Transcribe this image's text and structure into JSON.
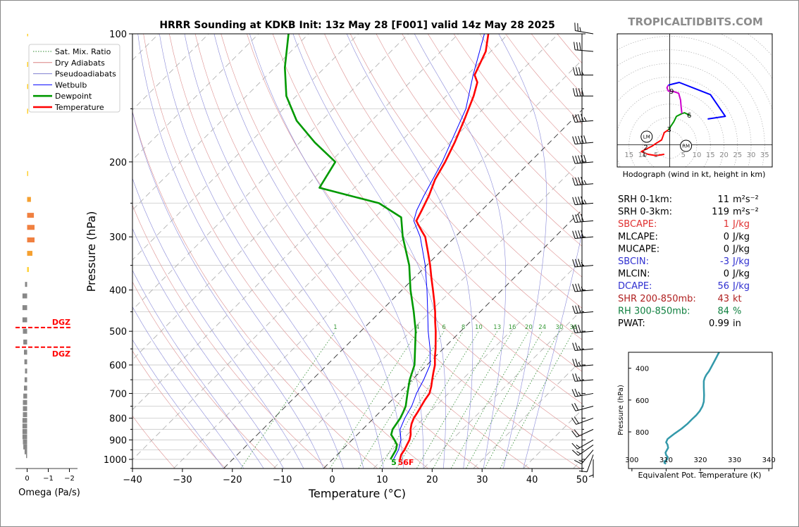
{
  "title": "HRRR Sounding at KDKB Init: 13z May 28 [F001] valid 14z May 28 2025",
  "watermark": "TROPICALTIDBITS.COM",
  "chart_data": [
    {
      "type": "line",
      "name": "skew-t",
      "xlabel": "Temperature (°C)",
      "ylabel": "Pressure (hPa)",
      "x_ticks": [
        -40,
        -30,
        -20,
        -10,
        0,
        10,
        20,
        30,
        40,
        50
      ],
      "y_ticks": [
        100,
        200,
        300,
        400,
        500,
        600,
        700,
        800,
        900,
        1000
      ],
      "xlim": [
        -40,
        50
      ],
      "ylim": [
        1050,
        100
      ],
      "y_scale": "log",
      "skew": "isotherms slanted 45 degrees",
      "legend": {
        "position": "top-left",
        "entries": [
          {
            "label": "Sat. Mix. Ratio",
            "color": "#2e8b2e",
            "style": "dotted"
          },
          {
            "label": "Dry Adiabats",
            "color": "#d98080",
            "style": "solid"
          },
          {
            "label": "Pseudoadiabats",
            "color": "#8080d0",
            "style": "solid"
          },
          {
            "label": "Wetbulb",
            "color": "#0000ff",
            "style": "solid"
          },
          {
            "label": "Dewpoint",
            "color": "#009900",
            "style": "solid"
          },
          {
            "label": "Temperature",
            "color": "#ff0000",
            "style": "solid"
          }
        ]
      },
      "series": [
        {
          "name": "Temperature",
          "color": "#ff0000",
          "points": [
            [
              1000,
              13.5
            ],
            [
              975,
              12.8
            ],
            [
              950,
              12.5
            ],
            [
              925,
              12.0
            ],
            [
              900,
              11.5
            ],
            [
              875,
              10.7
            ],
            [
              850,
              9.6
            ],
            [
              825,
              8.7
            ],
            [
              800,
              8.0
            ],
            [
              775,
              7.6
            ],
            [
              750,
              7.1
            ],
            [
              725,
              6.6
            ],
            [
              700,
              6.2
            ],
            [
              675,
              5.2
            ],
            [
              650,
              4.0
            ],
            [
              625,
              2.8
            ],
            [
              600,
              1.6
            ],
            [
              575,
              0.0
            ],
            [
              550,
              -1.5
            ],
            [
              525,
              -3.2
            ],
            [
              500,
              -5.0
            ],
            [
              475,
              -7.0
            ],
            [
              450,
              -9.0
            ],
            [
              425,
              -11.3
            ],
            [
              400,
              -13.8
            ],
            [
              375,
              -16.5
            ],
            [
              350,
              -19.3
            ],
            [
              325,
              -22.5
            ],
            [
              300,
              -26.0
            ],
            [
              290,
              -28.0
            ],
            [
              280,
              -30.0
            ],
            [
              275,
              -31.0
            ],
            [
              260,
              -32.0
            ],
            [
              240,
              -33.5
            ],
            [
              220,
              -35.5
            ],
            [
              200,
              -37.0
            ],
            [
              180,
              -39.0
            ],
            [
              160,
              -41.5
            ],
            [
              140,
              -44.5
            ],
            [
              130,
              -46.5
            ],
            [
              125,
              -48.5
            ],
            [
              110,
              -51.0
            ],
            [
              100,
              -54.0
            ]
          ]
        },
        {
          "name": "Dewpoint",
          "color": "#009900",
          "points": [
            [
              1000,
              11.6
            ],
            [
              975,
              11.2
            ],
            [
              950,
              10.8
            ],
            [
              925,
              10.0
            ],
            [
              900,
              8.5
            ],
            [
              875,
              6.8
            ],
            [
              850,
              6.0
            ],
            [
              800,
              5.3
            ],
            [
              775,
              4.7
            ],
            [
              750,
              4.0
            ],
            [
              700,
              1.8
            ],
            [
              650,
              -0.5
            ],
            [
              600,
              -2.5
            ],
            [
              550,
              -5.6
            ],
            [
              500,
              -9.0
            ],
            [
              450,
              -13.3
            ],
            [
              400,
              -18.3
            ],
            [
              350,
              -23.5
            ],
            [
              300,
              -30.5
            ],
            [
              270,
              -34.7
            ],
            [
              250,
              -42.0
            ],
            [
              230,
              -57.0
            ],
            [
              200,
              -59.0
            ],
            [
              180,
              -67.0
            ],
            [
              160,
              -75.0
            ],
            [
              140,
              -82.0
            ],
            [
              120,
              -88.0
            ],
            [
              100,
              -94.0
            ]
          ]
        },
        {
          "name": "Wetbulb",
          "color": "#0000ff",
          "points": [
            [
              1000,
              12.2
            ],
            [
              950,
              11.3
            ],
            [
              900,
              9.8
            ],
            [
              850,
              7.5
            ],
            [
              800,
              6.2
            ],
            [
              750,
              5.2
            ],
            [
              700,
              3.6
            ],
            [
              650,
              2.3
            ],
            [
              600,
              0.6
            ],
            [
              550,
              -2.6
            ],
            [
              500,
              -6.5
            ],
            [
              450,
              -10.5
            ],
            [
              400,
              -15.0
            ],
            [
              350,
              -20.3
            ],
            [
              300,
              -27.0
            ],
            [
              275,
              -31.5
            ],
            [
              260,
              -33.0
            ],
            [
              240,
              -34.5
            ],
            [
              200,
              -37.6
            ],
            [
              150,
              -43.5
            ],
            [
              125,
              -48.8
            ],
            [
              100,
              -54.8
            ]
          ]
        }
      ],
      "surface_labels": {
        "dewpoint": "5",
        "temperature": "56F"
      },
      "mixing_ratio_labels": [
        "1",
        "4",
        "6",
        "8",
        "10",
        "13",
        "16",
        "20",
        "24",
        "30",
        "36"
      ],
      "wind_barbs": [
        {
          "p": 1000,
          "dir": 180,
          "spd": 5
        },
        {
          "p": 975,
          "dir": 200,
          "spd": 10
        },
        {
          "p": 950,
          "dir": 220,
          "spd": 15
        },
        {
          "p": 925,
          "dir": 235,
          "spd": 15
        },
        {
          "p": 900,
          "dir": 240,
          "spd": 15
        },
        {
          "p": 850,
          "dir": 245,
          "spd": 20
        },
        {
          "p": 800,
          "dir": 250,
          "spd": 20
        },
        {
          "p": 750,
          "dir": 255,
          "spd": 20
        },
        {
          "p": 700,
          "dir": 260,
          "spd": 25
        },
        {
          "p": 650,
          "dir": 265,
          "spd": 25
        },
        {
          "p": 600,
          "dir": 265,
          "spd": 25
        },
        {
          "p": 550,
          "dir": 265,
          "spd": 25
        },
        {
          "p": 500,
          "dir": 265,
          "spd": 30
        },
        {
          "p": 450,
          "dir": 265,
          "spd": 30
        },
        {
          "p": 400,
          "dir": 265,
          "spd": 35
        },
        {
          "p": 350,
          "dir": 265,
          "spd": 35
        },
        {
          "p": 300,
          "dir": 265,
          "spd": 40
        },
        {
          "p": 275,
          "dir": 265,
          "spd": 40
        },
        {
          "p": 250,
          "dir": 265,
          "spd": 45
        },
        {
          "p": 225,
          "dir": 265,
          "spd": 45
        },
        {
          "p": 200,
          "dir": 265,
          "spd": 50
        },
        {
          "p": 180,
          "dir": 265,
          "spd": 50
        },
        {
          "p": 160,
          "dir": 265,
          "spd": 45
        },
        {
          "p": 140,
          "dir": 270,
          "spd": 40
        },
        {
          "p": 125,
          "dir": 270,
          "spd": 35
        },
        {
          "p": 110,
          "dir": 275,
          "spd": 30
        },
        {
          "p": 100,
          "dir": 280,
          "spd": 25
        }
      ]
    },
    {
      "type": "bar",
      "name": "omega",
      "xlabel": "Omega (Pa/s)",
      "x_ticks": [
        "0",
        "−1",
        "−2"
      ],
      "xlim": [
        0.4,
        -2.2
      ],
      "dgz_label": "DGZ",
      "dgz_pressures": [
        490,
        545
      ],
      "bars": [
        {
          "p": 100,
          "w": -0.05
        },
        {
          "p": 118,
          "w": -0.05
        },
        {
          "p": 133,
          "w": -0.05
        },
        {
          "p": 152,
          "w": -0.05
        },
        {
          "p": 213,
          "w": -0.05
        },
        {
          "p": 245,
          "w": -0.18
        },
        {
          "p": 267,
          "w": -0.32
        },
        {
          "p": 285,
          "w": -0.35
        },
        {
          "p": 305,
          "w": -0.35
        },
        {
          "p": 328,
          "w": -0.25
        },
        {
          "p": 358,
          "w": -0.08
        },
        {
          "p": 388,
          "w": 0.1
        },
        {
          "p": 413,
          "w": 0.22
        },
        {
          "p": 440,
          "w": 0.22
        },
        {
          "p": 470,
          "w": 0.22
        },
        {
          "p": 500,
          "w": 0.2
        },
        {
          "p": 530,
          "w": 0.18
        },
        {
          "p": 560,
          "w": 0.15
        },
        {
          "p": 590,
          "w": 0.13
        },
        {
          "p": 620,
          "w": 0.1
        },
        {
          "p": 650,
          "w": 0.12
        },
        {
          "p": 680,
          "w": 0.15
        },
        {
          "p": 710,
          "w": 0.18
        },
        {
          "p": 735,
          "w": 0.2
        },
        {
          "p": 760,
          "w": 0.2
        },
        {
          "p": 785,
          "w": 0.2
        },
        {
          "p": 810,
          "w": 0.22
        },
        {
          "p": 835,
          "w": 0.22
        },
        {
          "p": 860,
          "w": 0.22
        },
        {
          "p": 885,
          "w": 0.22
        },
        {
          "p": 910,
          "w": 0.2
        },
        {
          "p": 935,
          "w": 0.18
        },
        {
          "p": 960,
          "w": 0.12
        },
        {
          "p": 980,
          "w": 0.05
        }
      ]
    },
    {
      "type": "line",
      "name": "hodograph",
      "caption": "Hodograph (wind in kt, height in km)",
      "u_ticks": [
        -15,
        -10,
        -5,
        5,
        10,
        15,
        20,
        25,
        30,
        35
      ],
      "height_labels": [
        "1",
        "2",
        "3",
        "6",
        "9"
      ],
      "markers": [
        {
          "label": "LM",
          "u": -8.5,
          "v": 3
        },
        {
          "label": "RM",
          "u": 6,
          "v": -0.4
        }
      ],
      "segments": [
        {
          "color": "#ff0000",
          "points": [
            [
              -2,
              -3.5
            ],
            [
              -5,
              -4
            ],
            [
              -8,
              -3.5
            ],
            [
              -10.5,
              -2.5
            ],
            [
              -6.5,
              -0.5
            ],
            [
              -5.5,
              0.2
            ],
            [
              -3,
              1.8
            ],
            [
              -2,
              4.5
            ],
            [
              -0.5,
              5.5
            ]
          ]
        },
        {
          "color": "#009900",
          "points": [
            [
              -0.5,
              5.5
            ],
            [
              1.5,
              8.5
            ],
            [
              2.5,
              10.5
            ],
            [
              4.5,
              11.5
            ],
            [
              5.5,
              11.8
            ],
            [
              7.5,
              10.8
            ]
          ]
        },
        {
          "color": "#cc00cc",
          "points": [
            [
              4.5,
              11.5
            ],
            [
              4.2,
              14
            ],
            [
              4,
              16.5
            ],
            [
              3.3,
              19
            ],
            [
              1.5,
              19.6
            ],
            [
              -0.5,
              19.8
            ],
            [
              -1,
              21
            ],
            [
              -0.5,
              22
            ]
          ]
        },
        {
          "color": "#0000ff",
          "points": [
            [
              -0.5,
              22
            ],
            [
              1.5,
              22.5
            ],
            [
              3.5,
              23
            ],
            [
              15,
              18.5
            ],
            [
              20.5,
              10.5
            ],
            [
              14,
              9.5
            ]
          ]
        }
      ]
    },
    {
      "type": "line",
      "name": "theta-e",
      "xlabel": "Equivalent Pot. Temperature (K)",
      "ylabel": "Pressure (hPa)",
      "x_ticks": [
        "300",
        "310",
        "320",
        "330",
        "340"
      ],
      "y_ticks": [
        "400",
        "600",
        "800"
      ],
      "xlim": [
        299,
        341
      ],
      "ylim": [
        1030,
        300
      ],
      "color": "#3399aa",
      "points": [
        [
          310,
          1000
        ],
        [
          309.5,
          995
        ],
        [
          309.5,
          985
        ],
        [
          310.2,
          975
        ],
        [
          310.5,
          960
        ],
        [
          310,
          945
        ],
        [
          309.8,
          930
        ],
        [
          310.2,
          915
        ],
        [
          310.6,
          900
        ],
        [
          310.4,
          880
        ],
        [
          310.0,
          865
        ],
        [
          310.4,
          845
        ],
        [
          311,
          835
        ],
        [
          312.5,
          810
        ],
        [
          314.5,
          780
        ],
        [
          316.2,
          750
        ],
        [
          317.6,
          720
        ],
        [
          318.8,
          695
        ],
        [
          319.8,
          670
        ],
        [
          320.6,
          640
        ],
        [
          321.0,
          610
        ],
        [
          321.1,
          570
        ],
        [
          321.0,
          520
        ],
        [
          321.0,
          480
        ],
        [
          321.3,
          460
        ],
        [
          321.8,
          440
        ],
        [
          322.5,
          420
        ],
        [
          323.0,
          400
        ],
        [
          323.5,
          380
        ],
        [
          324.5,
          340
        ],
        [
          325.2,
          310
        ],
        [
          325.5,
          300
        ]
      ]
    }
  ],
  "indices": [
    {
      "label": "SRH 0-1km:",
      "value": "11",
      "unit": "m²s⁻²",
      "color": "#000000"
    },
    {
      "label": "SRH 0-3km:",
      "value": "119",
      "unit": "m²s⁻²",
      "color": "#000000"
    },
    {
      "label": "SBCAPE:",
      "value": "1",
      "unit": "J/kg",
      "color": "#e03030"
    },
    {
      "label": "MLCAPE:",
      "value": "0",
      "unit": "J/kg",
      "color": "#000000"
    },
    {
      "label": "MUCAPE:",
      "value": "0",
      "unit": "J/kg",
      "color": "#000000"
    },
    {
      "label": "SBCIN:",
      "value": "-3",
      "unit": "J/kg",
      "color": "#3030d0"
    },
    {
      "label": "MLCIN:",
      "value": "0",
      "unit": "J/kg",
      "color": "#000000"
    },
    {
      "label": "DCAPE:",
      "value": "56",
      "unit": "J/kg",
      "color": "#3030d0"
    },
    {
      "label": "SHR 200-850mb:",
      "value": "43",
      "unit": "kt",
      "color": "#b02020"
    },
    {
      "label": "RH 300-850mb:",
      "value": "84",
      "unit": "%",
      "color": "#108040"
    },
    {
      "label": "PWAT:",
      "value": "0.99",
      "unit": "in",
      "color": "#000000"
    }
  ]
}
